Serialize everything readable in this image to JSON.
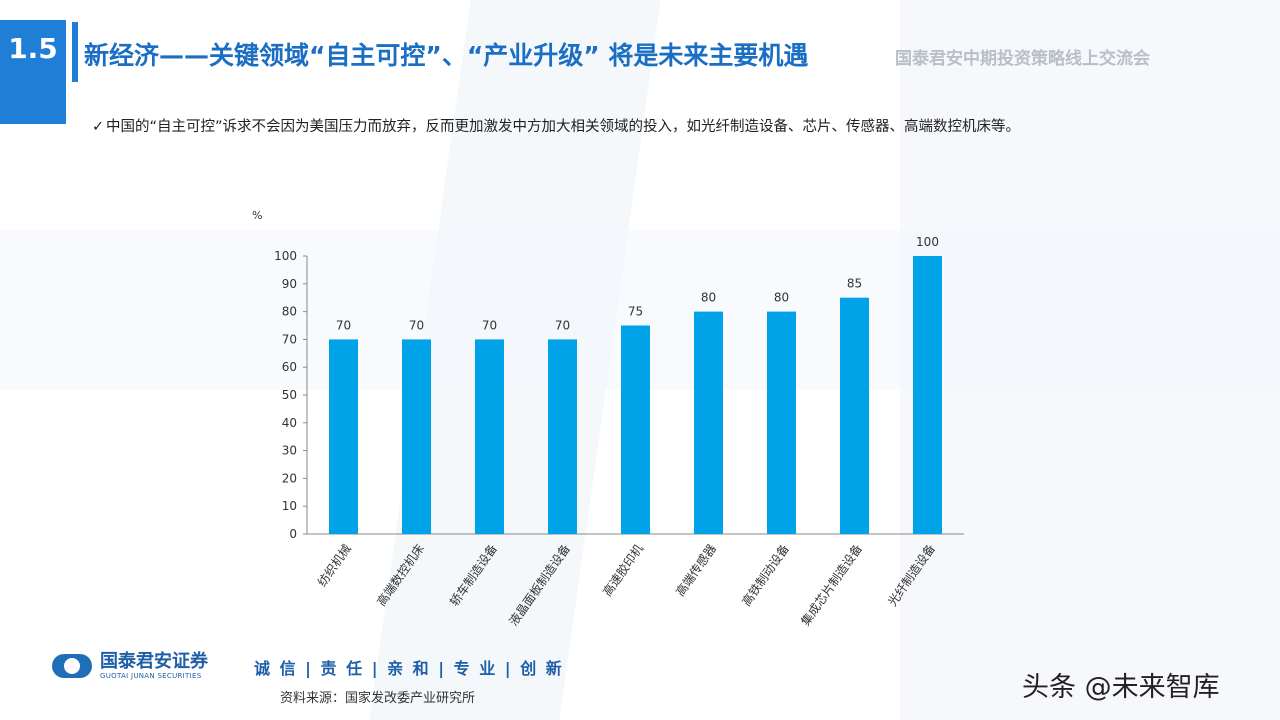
{
  "header": {
    "section_number": "1.5",
    "title": "新经济——关键领域“自主可控”、“产业升级” 将是未来主要机遇",
    "subtitle": "国泰君安中期投资策略线上交流会"
  },
  "bullet": {
    "check": "✓",
    "text": "中国的“自主可控”诉求不会因为美国压力而放弃，反而更加激发中方加大相关领域的投入，如光纤制造设备、芯片、传感器、高端数控机床等。"
  },
  "chart_data": {
    "type": "bar",
    "unit_label": "%",
    "categories": [
      "纺织机械",
      "高端数控机床",
      "轿车制造设备",
      "液晶面板制造设备",
      "高速胶印机",
      "高端传感器",
      "高铁制动设备",
      "集成芯片制造设备",
      "光纤制造设备"
    ],
    "values": [
      70,
      70,
      70,
      70,
      75,
      80,
      80,
      85,
      100
    ],
    "yticks": [
      "0",
      "10",
      "20",
      "30",
      "40",
      "50",
      "60",
      "70",
      "80",
      "90",
      "100"
    ],
    "ylim": [
      0,
      100
    ],
    "grid": false,
    "bar_color": "#00a2e8"
  },
  "footer": {
    "logo_cn": "国泰君安证券",
    "logo_en": "GUOTAI JUNAN SECURITIES",
    "slogan": "诚 信 | 责 任 | 亲 和 | 专 业 | 创 新",
    "source": "资料来源：国家发改委产业研究所",
    "watermark": "头条 @未来智库"
  },
  "colors": {
    "accent": "#1f7fd6",
    "title": "#1a6fc4"
  }
}
